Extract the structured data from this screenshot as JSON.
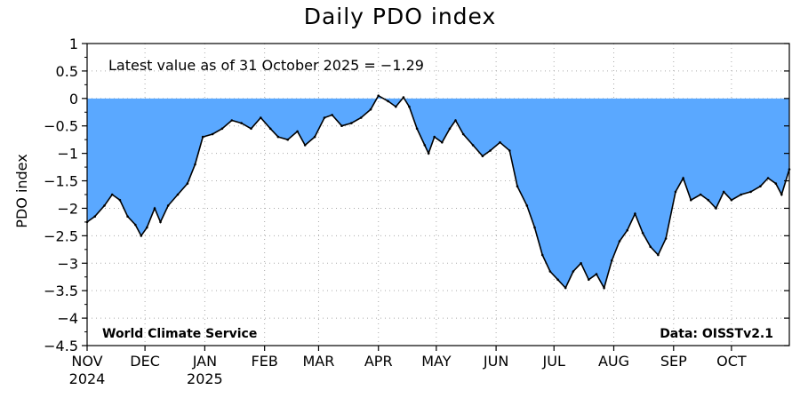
{
  "chart_data": {
    "type": "area",
    "title": "Daily PDO index",
    "ylabel": "PDO index",
    "xlabel": "",
    "ylim": [
      -4.5,
      1.0
    ],
    "yticks": [
      1,
      0.5,
      0,
      -0.5,
      -1,
      -1.5,
      -2,
      -2.5,
      -3,
      -3.5,
      -4,
      -4.5
    ],
    "ytick_labels": [
      "1",
      "0.5",
      "0",
      "−0.5",
      "−1",
      "−1.5",
      "−2",
      "−2.5",
      "−3",
      "−3.5",
      "−4",
      "−4.5"
    ],
    "xlim": [
      "2024-11-01",
      "2025-10-31"
    ],
    "xticks": [
      {
        "date": "2024-11-01",
        "label": "NOV",
        "sublabel": "2024"
      },
      {
        "date": "2024-12-01",
        "label": "DEC",
        "sublabel": ""
      },
      {
        "date": "2025-01-01",
        "label": "JAN",
        "sublabel": "2025"
      },
      {
        "date": "2025-02-01",
        "label": "FEB",
        "sublabel": ""
      },
      {
        "date": "2025-03-01",
        "label": "MAR",
        "sublabel": ""
      },
      {
        "date": "2025-04-01",
        "label": "APR",
        "sublabel": ""
      },
      {
        "date": "2025-05-01",
        "label": "MAY",
        "sublabel": ""
      },
      {
        "date": "2025-06-01",
        "label": "JUN",
        "sublabel": ""
      },
      {
        "date": "2025-07-01",
        "label": "JUL",
        "sublabel": ""
      },
      {
        "date": "2025-08-01",
        "label": "AUG",
        "sublabel": ""
      },
      {
        "date": "2025-09-01",
        "label": "SEP",
        "sublabel": ""
      },
      {
        "date": "2025-10-01",
        "label": "OCT",
        "sublabel": ""
      }
    ],
    "grid": true,
    "fill_color": "#5aa8ff",
    "line_color": "#000000",
    "series": [
      {
        "points": [
          [
            "2024-11-01",
            -2.25
          ],
          [
            "2024-11-05",
            -2.15
          ],
          [
            "2024-11-10",
            -1.95
          ],
          [
            "2024-11-14",
            -1.75
          ],
          [
            "2024-11-18",
            -1.85
          ],
          [
            "2024-11-22",
            -2.15
          ],
          [
            "2024-11-26",
            -2.3
          ],
          [
            "2024-11-29",
            -2.5
          ],
          [
            "2024-12-02",
            -2.35
          ],
          [
            "2024-12-06",
            -2.0
          ],
          [
            "2024-12-09",
            -2.25
          ],
          [
            "2024-12-13",
            -1.95
          ],
          [
            "2024-12-18",
            -1.75
          ],
          [
            "2024-12-23",
            -1.55
          ],
          [
            "2024-12-27",
            -1.2
          ],
          [
            "2024-12-31",
            -0.7
          ],
          [
            "2025-01-05",
            -0.65
          ],
          [
            "2025-01-10",
            -0.55
          ],
          [
            "2025-01-15",
            -0.4
          ],
          [
            "2025-01-20",
            -0.45
          ],
          [
            "2025-01-25",
            -0.55
          ],
          [
            "2025-01-30",
            -0.35
          ],
          [
            "2025-02-04",
            -0.55
          ],
          [
            "2025-02-08",
            -0.7
          ],
          [
            "2025-02-13",
            -0.75
          ],
          [
            "2025-02-18",
            -0.6
          ],
          [
            "2025-02-22",
            -0.85
          ],
          [
            "2025-02-27",
            -0.7
          ],
          [
            "2025-03-04",
            -0.35
          ],
          [
            "2025-03-08",
            -0.3
          ],
          [
            "2025-03-13",
            -0.5
          ],
          [
            "2025-03-18",
            -0.45
          ],
          [
            "2025-03-23",
            -0.35
          ],
          [
            "2025-03-28",
            -0.2
          ],
          [
            "2025-04-01",
            0.05
          ],
          [
            "2025-04-06",
            -0.05
          ],
          [
            "2025-04-10",
            -0.15
          ],
          [
            "2025-04-14",
            0.02
          ],
          [
            "2025-04-17",
            -0.15
          ],
          [
            "2025-04-21",
            -0.55
          ],
          [
            "2025-04-25",
            -0.85
          ],
          [
            "2025-04-27",
            -1.0
          ],
          [
            "2025-04-30",
            -0.7
          ],
          [
            "2025-05-04",
            -0.8
          ],
          [
            "2025-05-08",
            -0.55
          ],
          [
            "2025-05-11",
            -0.4
          ],
          [
            "2025-05-15",
            -0.65
          ],
          [
            "2025-05-20",
            -0.85
          ],
          [
            "2025-05-25",
            -1.05
          ],
          [
            "2025-05-29",
            -0.95
          ],
          [
            "2025-06-03",
            -0.8
          ],
          [
            "2025-06-08",
            -0.95
          ],
          [
            "2025-06-12",
            -1.6
          ],
          [
            "2025-06-17",
            -1.95
          ],
          [
            "2025-06-21",
            -2.35
          ],
          [
            "2025-06-25",
            -2.85
          ],
          [
            "2025-06-29",
            -3.15
          ],
          [
            "2025-07-03",
            -3.3
          ],
          [
            "2025-07-07",
            -3.45
          ],
          [
            "2025-07-11",
            -3.15
          ],
          [
            "2025-07-15",
            -3.0
          ],
          [
            "2025-07-19",
            -3.3
          ],
          [
            "2025-07-23",
            -3.2
          ],
          [
            "2025-07-27",
            -3.45
          ],
          [
            "2025-07-31",
            -2.95
          ],
          [
            "2025-08-04",
            -2.6
          ],
          [
            "2025-08-08",
            -2.4
          ],
          [
            "2025-08-12",
            -2.1
          ],
          [
            "2025-08-16",
            -2.45
          ],
          [
            "2025-08-20",
            -2.7
          ],
          [
            "2025-08-24",
            -2.85
          ],
          [
            "2025-08-28",
            -2.55
          ],
          [
            "2025-09-02",
            -1.7
          ],
          [
            "2025-09-06",
            -1.45
          ],
          [
            "2025-09-10",
            -1.85
          ],
          [
            "2025-09-15",
            -1.75
          ],
          [
            "2025-09-19",
            -1.85
          ],
          [
            "2025-09-23",
            -2.0
          ],
          [
            "2025-09-27",
            -1.7
          ],
          [
            "2025-10-01",
            -1.85
          ],
          [
            "2025-10-06",
            -1.75
          ],
          [
            "2025-10-11",
            -1.7
          ],
          [
            "2025-10-16",
            -1.6
          ],
          [
            "2025-10-20",
            -1.45
          ],
          [
            "2025-10-24",
            -1.55
          ],
          [
            "2025-10-27",
            -1.75
          ],
          [
            "2025-10-31",
            -1.29
          ]
        ]
      }
    ],
    "annotations": {
      "latest": "Latest value as of 31 October 2025 = −1.29",
      "credit": "World Climate Service",
      "source": "Data: OISSTv2.1"
    }
  }
}
